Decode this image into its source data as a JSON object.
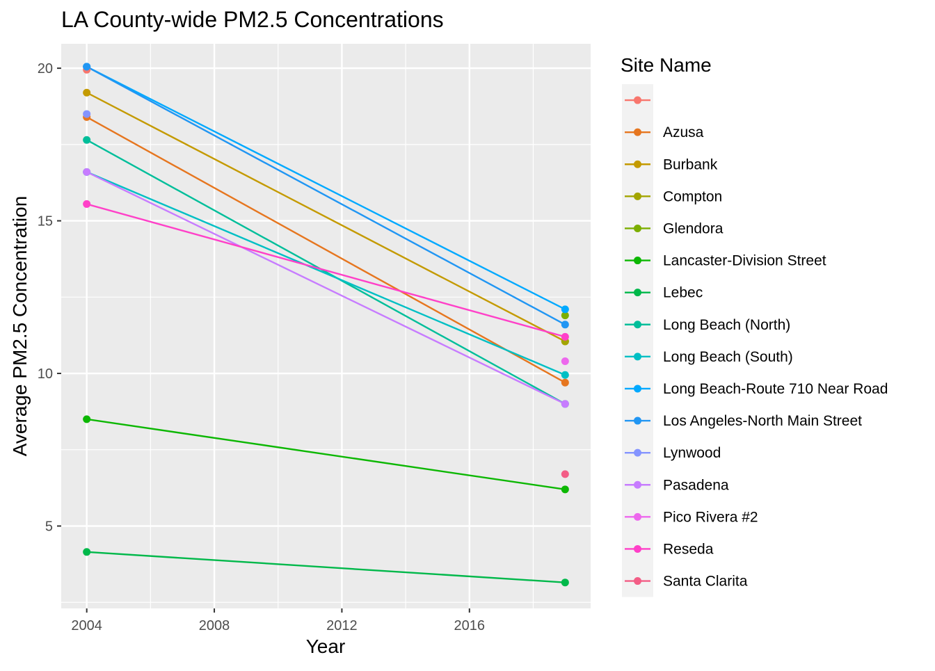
{
  "chart_data": {
    "type": "line",
    "title": "LA County-wide PM2.5 Concentrations",
    "xlabel": "Year",
    "ylabel": "Average PM2.5 Concentration",
    "xlim": [
      2003.2,
      2019.8
    ],
    "ylim": [
      2.3,
      20.8
    ],
    "x_ticks": [
      2004,
      2008,
      2012,
      2016
    ],
    "x_minor": [
      2006,
      2010,
      2014,
      2018
    ],
    "y_ticks": [
      5,
      10,
      15,
      20
    ],
    "y_minor": [
      2.5,
      7.5,
      12.5,
      17.5
    ],
    "grid": true,
    "legend_title": "Site Name",
    "legend_position": "right",
    "x": [
      2004,
      2019
    ],
    "series": [
      {
        "name": "",
        "color": "#F8766D",
        "values": [
          19.95,
          null
        ]
      },
      {
        "name": "Azusa",
        "color": "#E6761F",
        "values": [
          18.4,
          9.7
        ]
      },
      {
        "name": "Burbank",
        "color": "#C49A00",
        "values": [
          19.2,
          11.05
        ]
      },
      {
        "name": "Compton",
        "color": "#A3A500",
        "values": [
          null,
          11.05
        ]
      },
      {
        "name": "Glendora",
        "color": "#7CAE00",
        "values": [
          null,
          11.9
        ]
      },
      {
        "name": "Lancaster-Division Street",
        "color": "#0CB702",
        "values": [
          8.5,
          6.2
        ]
      },
      {
        "name": "Lebec",
        "color": "#00B84A",
        "values": [
          4.15,
          3.15
        ]
      },
      {
        "name": "Long Beach (North)",
        "color": "#00BE9A",
        "values": [
          17.65,
          9.0
        ]
      },
      {
        "name": "Long Beach (South)",
        "color": "#00BFC4",
        "values": [
          16.6,
          9.95
        ]
      },
      {
        "name": "Long Beach-Route 710 Near Road",
        "color": "#00A9FF",
        "values": [
          20.05,
          12.1
        ]
      },
      {
        "name": "Los Angeles-North Main Street",
        "color": "#2196F3",
        "values": [
          20.05,
          11.6
        ]
      },
      {
        "name": "Lynwood",
        "color": "#8494FF",
        "values": [
          18.5,
          null
        ]
      },
      {
        "name": "Pasadena",
        "color": "#C77CFF",
        "values": [
          16.6,
          9.0
        ]
      },
      {
        "name": "Pico Rivera #2",
        "color": "#ED68ED",
        "values": [
          null,
          10.4
        ]
      },
      {
        "name": "Reseda",
        "color": "#FF40C8",
        "values": [
          15.55,
          11.2
        ]
      },
      {
        "name": "Santa Clarita",
        "color": "#F35D86",
        "values": [
          null,
          6.7
        ]
      }
    ]
  }
}
